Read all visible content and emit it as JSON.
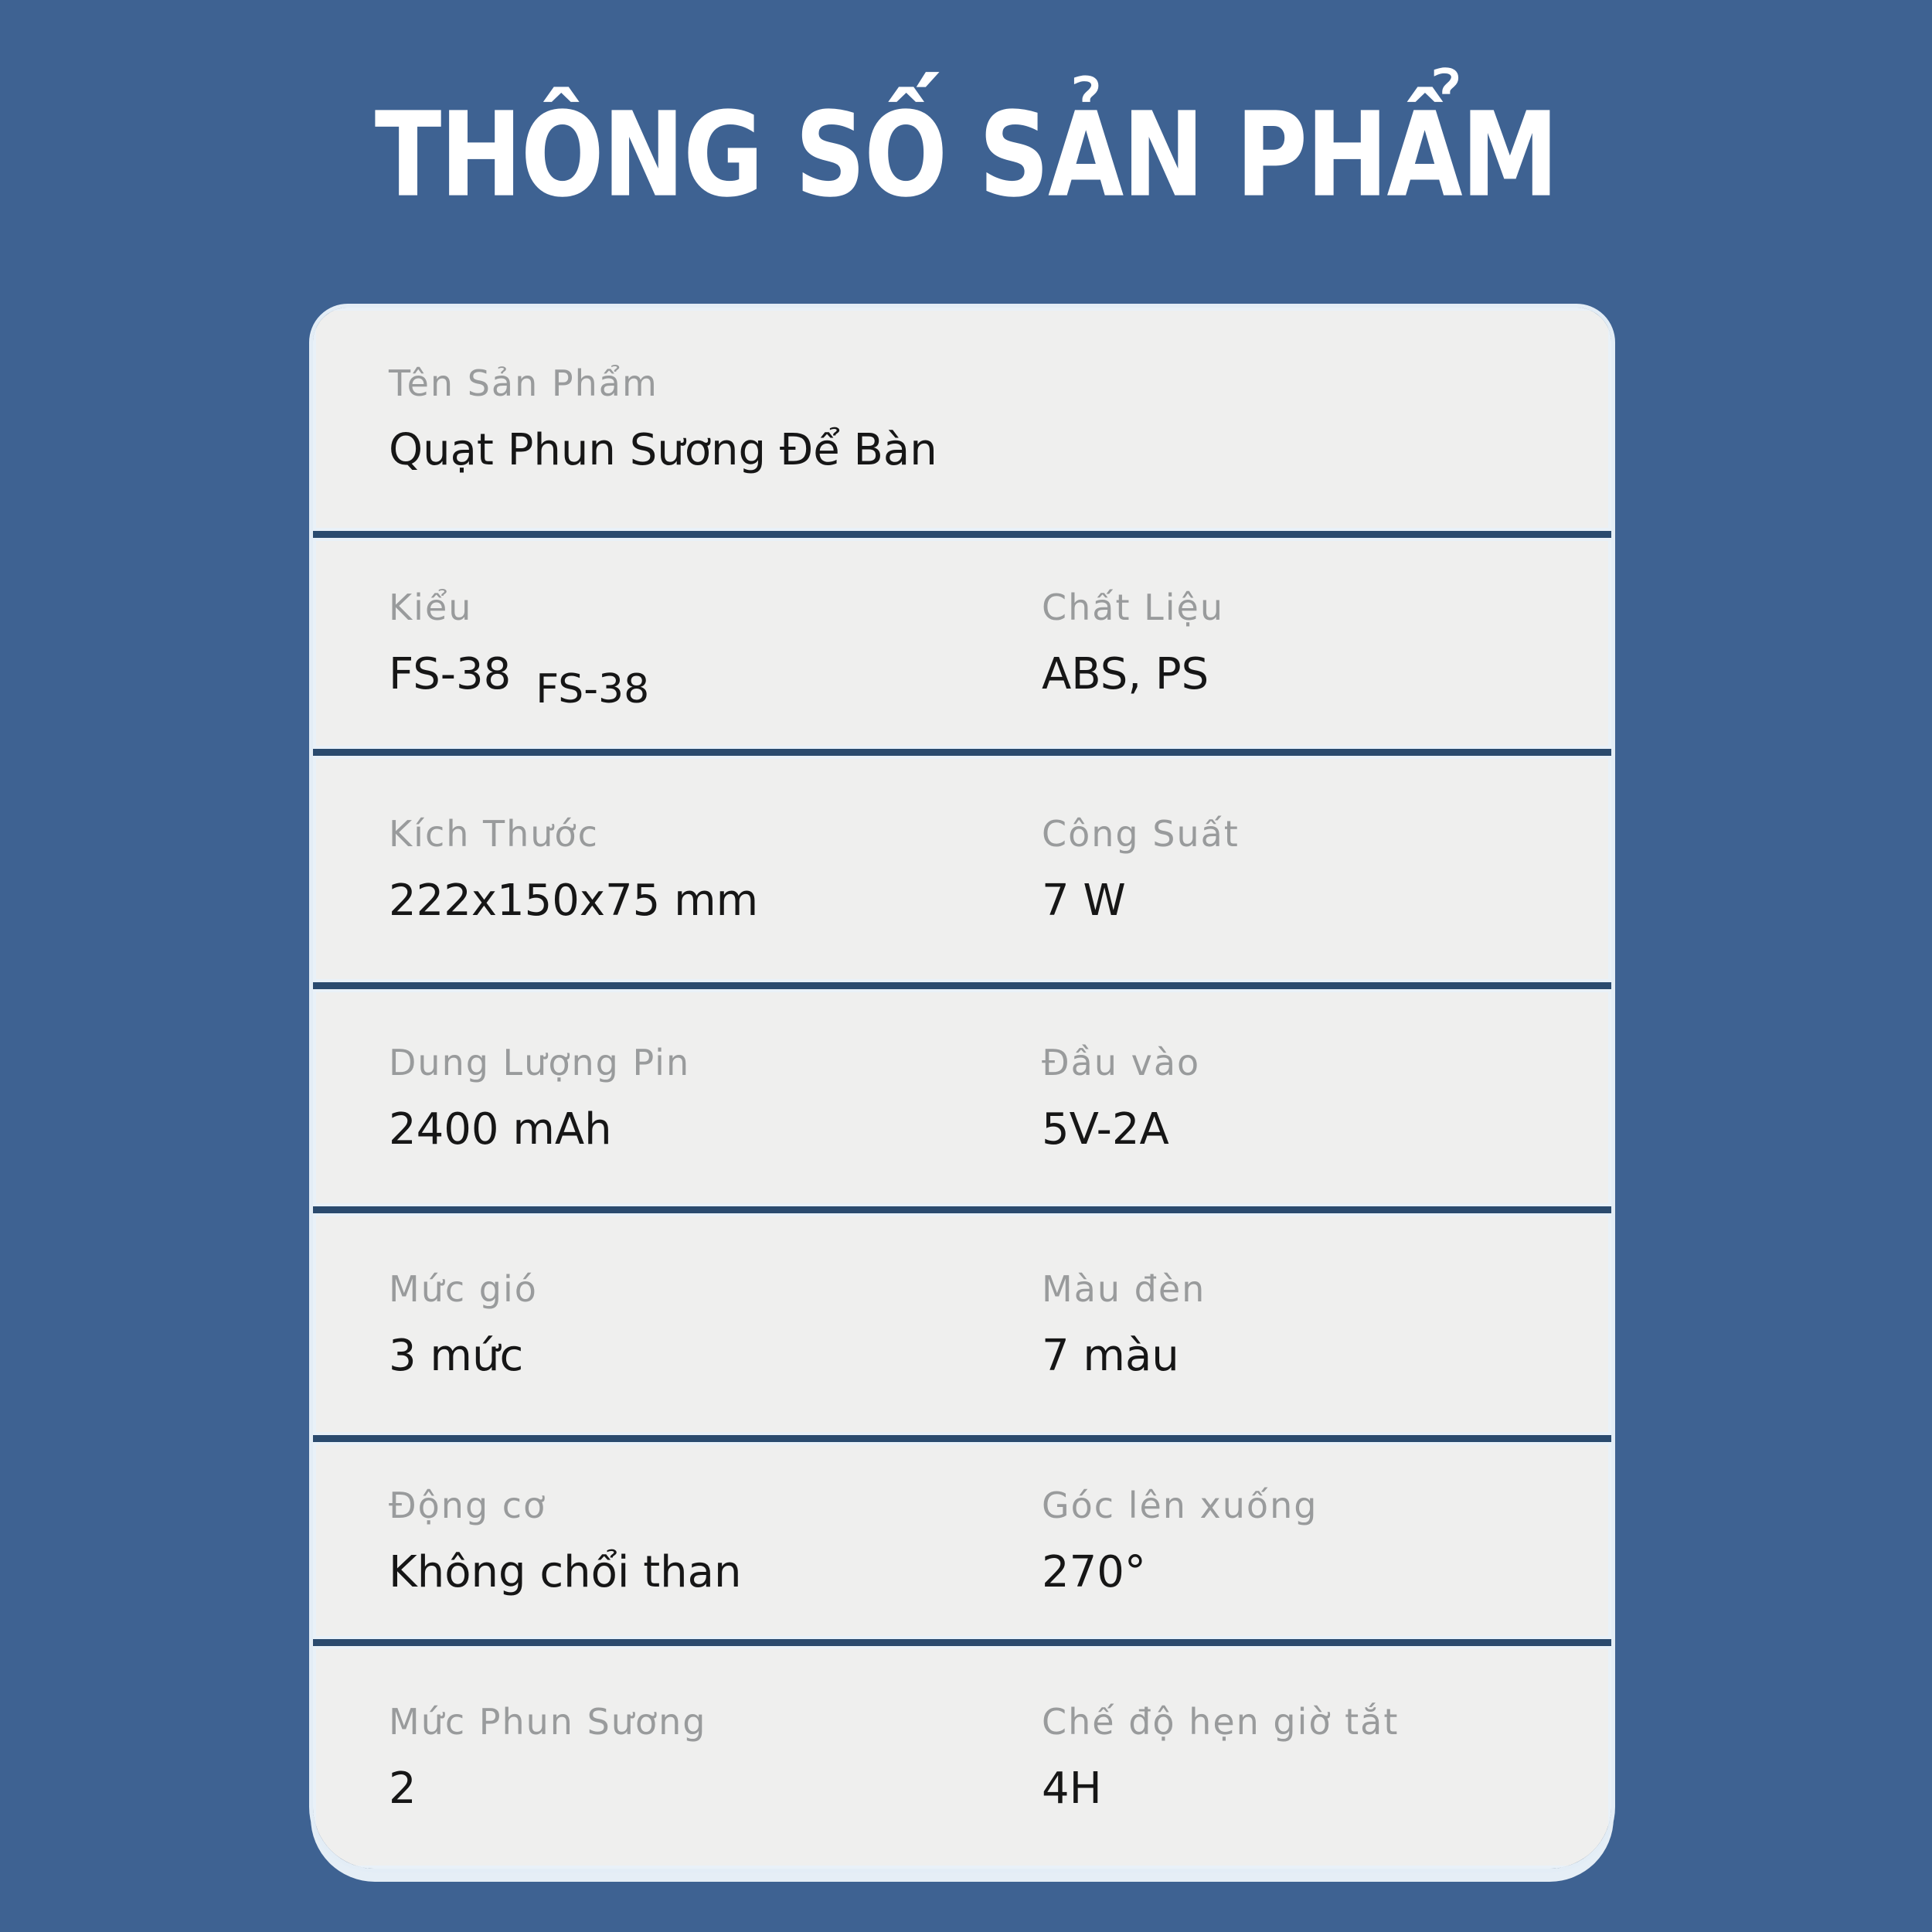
{
  "page": {
    "title": "THÔNG SỐ SẢN PHẨM"
  },
  "colors": {
    "background": "#3e6292",
    "separator_navy": "#2a4a6e",
    "card_fill": "#efefee",
    "card_rim": "#e3edf6",
    "label_gray": "#999b9c",
    "value_black": "#161616",
    "title_white": "#ffffff"
  },
  "spec_table": {
    "rows": [
      {
        "cells": [
          {
            "label": "Tên Sản Phẩm",
            "value": "Quạt Phun Sương Để Bàn"
          }
        ]
      },
      {
        "cells": [
          {
            "label": "Kiểu",
            "value": "FS-38",
            "value_shadow": "FS-38"
          },
          {
            "label": "Chất Liệu",
            "value": "ABS,  PS"
          }
        ]
      },
      {
        "cells": [
          {
            "label": "Kích Thước",
            "value": "222x150x75 mm"
          },
          {
            "label": "Công Suất",
            "value": "7 W"
          }
        ]
      },
      {
        "cells": [
          {
            "label": "Dung Lượng Pin",
            "value": "2400 mAh"
          },
          {
            "label": "Đầu vào",
            "value": "5V-2A"
          }
        ]
      },
      {
        "cells": [
          {
            "label": "Mức gió",
            "value": "3 mức"
          },
          {
            "label": "Màu đèn",
            "value": "7 màu"
          }
        ]
      },
      {
        "cells": [
          {
            "label": "Động cơ",
            "value": "Không chổi than"
          },
          {
            "label": "Góc lên xuống",
            "value": "270°"
          }
        ]
      },
      {
        "cells": [
          {
            "label": "Mức Phun Sương",
            "value": "2"
          },
          {
            "label": "Chế độ hẹn giờ tắt",
            "value": "4H"
          }
        ]
      }
    ]
  }
}
